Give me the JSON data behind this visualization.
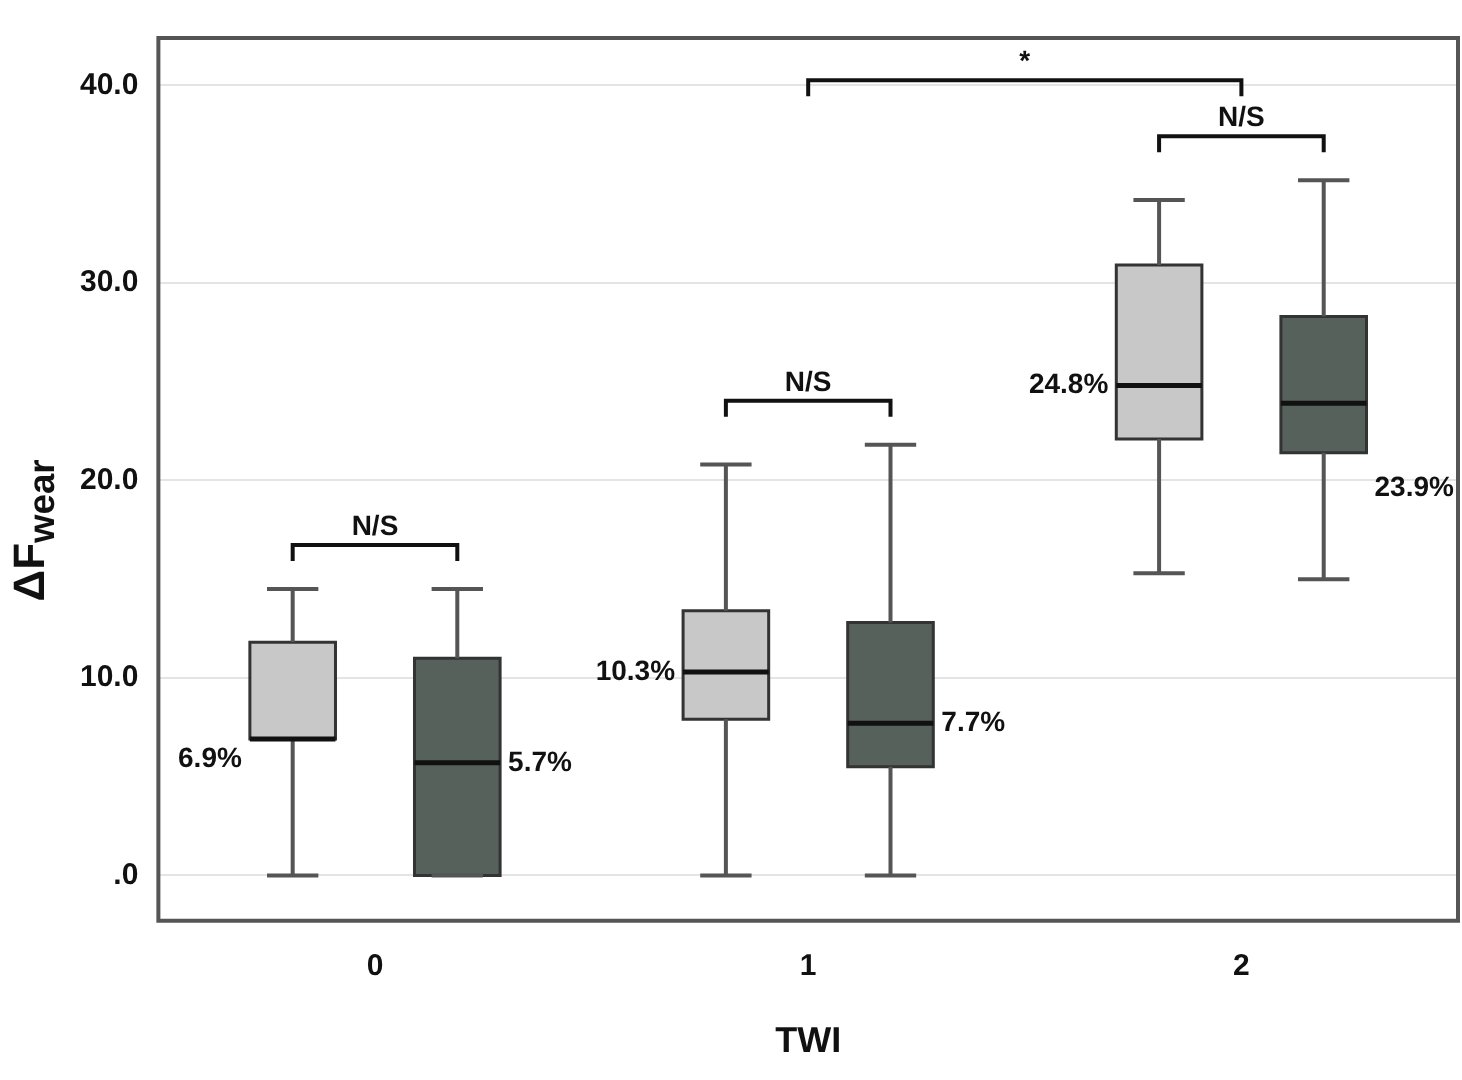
{
  "chart_data": {
    "type": "box",
    "xlabel": "TWI",
    "ylabel": "ΔF$_{wear}$",
    "categories": [
      "0",
      "1",
      "2"
    ],
    "ylim": [
      -2.3,
      42.4
    ],
    "yticks": [
      {
        "value": 0,
        "label": ".0"
      },
      {
        "value": 10,
        "label": "10.0"
      },
      {
        "value": 20,
        "label": "20.0"
      },
      {
        "value": 30,
        "label": "30.0"
      },
      {
        "value": 40,
        "label": "40.0"
      }
    ],
    "grid": "y",
    "series": [
      {
        "color": "#c8c8c8",
        "value_labels": [
          "6.9%",
          "10.3%",
          "24.8%"
        ],
        "boxes": [
          {
            "low": 0,
            "q1": 6.9,
            "median": 6.9,
            "q3": 11.8,
            "high": 14.5
          },
          {
            "low": 0,
            "q1": 7.9,
            "median": 10.3,
            "q3": 13.4,
            "high": 20.8
          },
          {
            "low": 15.3,
            "q1": 22.1,
            "median": 24.8,
            "q3": 30.9,
            "high": 34.2
          }
        ]
      },
      {
        "color": "#56615b",
        "value_labels": [
          "5.7%",
          "7.7%",
          "23.9%"
        ],
        "boxes": [
          {
            "low": 0,
            "q1": 0,
            "median": 5.7,
            "q3": 11.0,
            "high": 14.5
          },
          {
            "low": 0,
            "q1": 5.5,
            "median": 7.7,
            "q3": 12.8,
            "high": 21.8
          },
          {
            "low": 15.0,
            "q1": 21.4,
            "median": 23.9,
            "q3": 28.3,
            "high": 35.2
          }
        ]
      }
    ],
    "annotations": [
      "N/S",
      "N/S",
      "N/S",
      "*"
    ]
  }
}
